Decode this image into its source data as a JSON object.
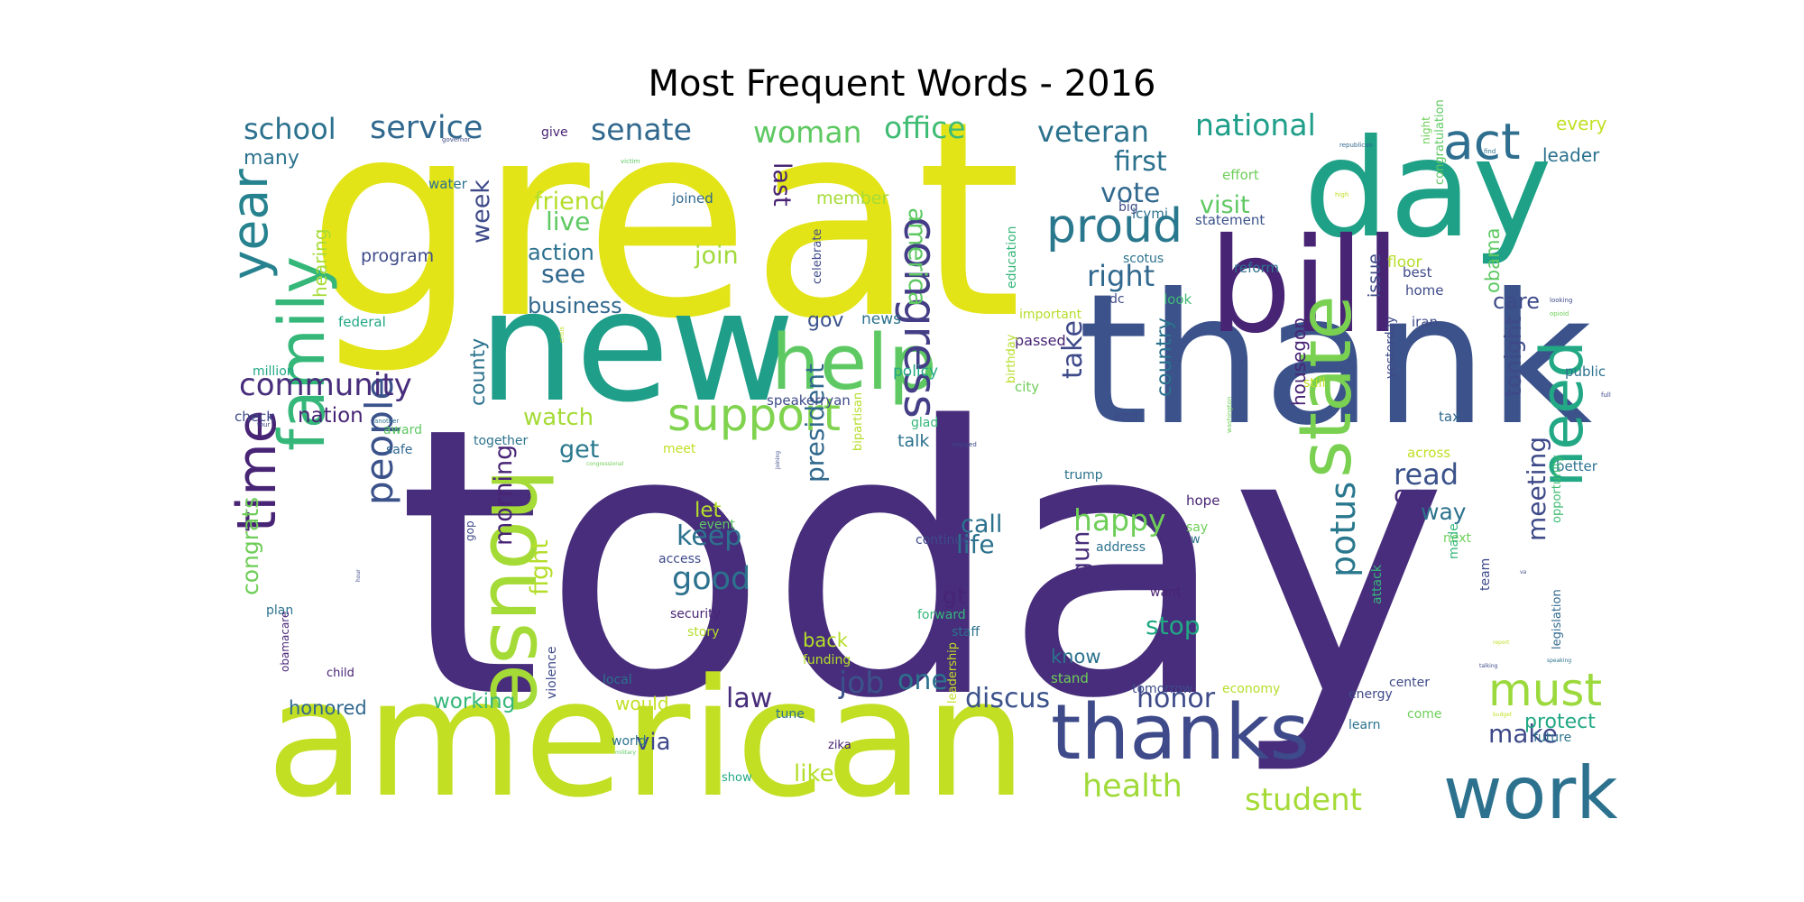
{
  "chart_data": {
    "type": "wordcloud",
    "title": "Most Frequent Words - 2016",
    "words": [
      {
        "text": "today",
        "weight": 100,
        "color": "#472d7b"
      },
      {
        "text": "great",
        "weight": 76,
        "color": "#e3e418"
      },
      {
        "text": "american",
        "weight": 58,
        "color": "#c2df23"
      },
      {
        "text": "thank",
        "weight": 57,
        "color": "#3b528b"
      },
      {
        "text": "new",
        "weight": 53,
        "color": "#1f9e89"
      },
      {
        "text": "day",
        "weight": 48,
        "color": "#1fa187"
      },
      {
        "text": "bill",
        "weight": 45,
        "color": "#482475"
      },
      {
        "text": "house",
        "weight": 30,
        "color": "#a5db36"
      },
      {
        "text": "thanks",
        "weight": 28,
        "color": "#3e4a89"
      },
      {
        "text": "work",
        "weight": 25,
        "color": "#2c728e"
      },
      {
        "text": "state",
        "weight": 25,
        "color": "#7ad151"
      },
      {
        "text": "help",
        "weight": 24,
        "color": "#5ec962"
      },
      {
        "text": "family",
        "weight": 23,
        "color": "#35b779"
      },
      {
        "text": "need",
        "weight": 21,
        "color": "#22a884"
      },
      {
        "text": "time",
        "weight": 20,
        "color": "#482475"
      },
      {
        "text": "year",
        "weight": 18,
        "color": "#26828e"
      },
      {
        "text": "support",
        "weight": 15,
        "color": "#7fd34e"
      },
      {
        "text": "congress",
        "weight": 15,
        "color": "#433e85"
      },
      {
        "text": "proud",
        "weight": 14,
        "color": "#2a788e"
      },
      {
        "text": "act",
        "weight": 14,
        "color": "#2e6e8e"
      },
      {
        "text": "people",
        "weight": 13,
        "color": "#3b528b"
      },
      {
        "text": "must",
        "weight": 13,
        "color": "#9bd93c"
      },
      {
        "text": "potus",
        "weight": 11,
        "color": "#2a788e"
      },
      {
        "text": "health",
        "weight": 11,
        "color": "#a0da39"
      },
      {
        "text": "student",
        "weight": 10,
        "color": "#a5db36"
      },
      {
        "text": "woman",
        "weight": 10,
        "color": "#5ec962"
      },
      {
        "text": "office",
        "weight": 10,
        "color": "#3fbc73"
      },
      {
        "text": "veteran",
        "weight": 10,
        "color": "#2c728e"
      },
      {
        "text": "senate",
        "weight": 10,
        "color": "#31688e"
      },
      {
        "text": "service",
        "weight": 10,
        "color": "#31688e"
      },
      {
        "text": "school",
        "weight": 10,
        "color": "#2c728e"
      },
      {
        "text": "national",
        "weight": 10,
        "color": "#1f9e89"
      },
      {
        "text": "community",
        "weight": 10,
        "color": "#472d7b"
      },
      {
        "text": "discus",
        "weight": 9,
        "color": "#3b528b"
      },
      {
        "text": "honor",
        "weight": 9,
        "color": "#3e4a89"
      },
      {
        "text": "happy",
        "weight": 9,
        "color": "#6ece58"
      },
      {
        "text": "president",
        "weight": 9,
        "color": "#31688e"
      },
      {
        "text": "right",
        "weight": 9,
        "color": "#31688e"
      },
      {
        "text": "read",
        "weight": 9,
        "color": "#3b528b"
      },
      {
        "text": "first",
        "weight": 9,
        "color": "#2c728e"
      },
      {
        "text": "vote",
        "weight": 9,
        "color": "#31688e"
      },
      {
        "text": "law",
        "weight": 9,
        "color": "#472d7b"
      },
      {
        "text": "make",
        "weight": 8,
        "color": "#3e4a89"
      },
      {
        "text": "job",
        "weight": 8,
        "color": "#3b528b"
      },
      {
        "text": "one",
        "weight": 8,
        "color": "#2c728e"
      },
      {
        "text": "good",
        "weight": 8,
        "color": "#2c728e"
      },
      {
        "text": "keep",
        "weight": 8,
        "color": "#2c728e"
      },
      {
        "text": "take",
        "weight": 8,
        "color": "#3e4a89"
      },
      {
        "text": "meeting",
        "weight": 8,
        "color": "#3e4a89"
      },
      {
        "text": "morning",
        "weight": 8,
        "color": "#482475"
      },
      {
        "text": "congrats",
        "weight": 8,
        "color": "#6ece58"
      },
      {
        "text": "america",
        "weight": 8,
        "color": "#5ec962"
      },
      {
        "text": "watch",
        "weight": 8,
        "color": "#a5db36"
      },
      {
        "text": "get",
        "weight": 8,
        "color": "#2a788e"
      },
      {
        "text": "join",
        "weight": 8,
        "color": "#a0da39"
      },
      {
        "text": "live",
        "weight": 8,
        "color": "#5ec962"
      },
      {
        "text": "see",
        "weight": 8,
        "color": "#31688e"
      },
      {
        "text": "visit",
        "weight": 7,
        "color": "#5ec962"
      },
      {
        "text": "week",
        "weight": 7,
        "color": "#3e4a89"
      },
      {
        "text": "friend",
        "weight": 7,
        "color": "#b5de2b"
      },
      {
        "text": "action",
        "weight": 7,
        "color": "#2c728e"
      },
      {
        "text": "business",
        "weight": 7,
        "color": "#31688e"
      },
      {
        "text": "last",
        "weight": 7,
        "color": "#482475"
      },
      {
        "text": "fight",
        "weight": 7,
        "color": "#b5de2b"
      },
      {
        "text": "life",
        "weight": 7,
        "color": "#2c728e"
      },
      {
        "text": "call",
        "weight": 7,
        "color": "#2c728e"
      },
      {
        "text": "stop",
        "weight": 7,
        "color": "#22a884"
      },
      {
        "text": "gun",
        "weight": 7,
        "color": "#472d7b"
      },
      {
        "text": "tonight",
        "weight": 7,
        "color": "#3e4a89"
      },
      {
        "text": "go",
        "weight": 7,
        "color": "#472d7b"
      },
      {
        "text": "way",
        "weight": 6,
        "color": "#2c728e"
      },
      {
        "text": "country",
        "weight": 6,
        "color": "#2c728e"
      },
      {
        "text": "county",
        "weight": 6,
        "color": "#2c728e"
      },
      {
        "text": "nation",
        "weight": 6,
        "color": "#482475"
      },
      {
        "text": "working",
        "weight": 6,
        "color": "#35b779"
      },
      {
        "text": "via",
        "weight": 6,
        "color": "#3e4a89"
      },
      {
        "text": "like",
        "weight": 6,
        "color": "#b5de2b"
      },
      {
        "text": "obama",
        "weight": 6,
        "color": "#5ec962"
      },
      {
        "text": "care",
        "weight": 6,
        "color": "#3e4a89"
      },
      {
        "text": "gt",
        "weight": 6,
        "color": "#482475"
      },
      {
        "text": "hearing",
        "weight": 6,
        "color": "#a5db36"
      },
      {
        "text": "many",
        "weight": 6,
        "color": "#2c728e"
      },
      {
        "text": "honored",
        "weight": 5,
        "color": "#31688e"
      },
      {
        "text": "protect",
        "weight": 5,
        "color": "#22a884"
      },
      {
        "text": "let",
        "weight": 5,
        "color": "#b5de2b"
      },
      {
        "text": "gov",
        "weight": 5,
        "color": "#3b528b"
      },
      {
        "text": "issue",
        "weight": 5,
        "color": "#3e4a89"
      },
      {
        "text": "housegop",
        "weight": 5,
        "color": "#482475"
      },
      {
        "text": "every",
        "weight": 5,
        "color": "#c2df23"
      },
      {
        "text": "leader",
        "weight": 5,
        "color": "#2c728e"
      },
      {
        "text": "know",
        "weight": 5,
        "color": "#2c728e"
      },
      {
        "text": "back",
        "weight": 5,
        "color": "#b5de2b"
      },
      {
        "text": "would",
        "weight": 5,
        "color": "#c2df23"
      },
      {
        "text": "program",
        "weight": 4,
        "color": "#3e4a89"
      },
      {
        "text": "talk",
        "weight": 4,
        "color": "#2c728e"
      },
      {
        "text": "member",
        "weight": 4,
        "color": "#a5db36"
      },
      {
        "text": "news",
        "weight": 4,
        "color": "#2c728e"
      },
      {
        "text": "policy",
        "weight": 4,
        "color": "#22a884"
      },
      {
        "text": "water",
        "weight": 3,
        "color": "#2c728e"
      },
      {
        "text": "joined",
        "weight": 3,
        "color": "#31688e"
      },
      {
        "text": "effort",
        "weight": 3,
        "color": "#6ece58"
      },
      {
        "text": "icymi",
        "weight": 3,
        "color": "#2c728e"
      },
      {
        "text": "big",
        "weight": 3,
        "color": "#3e4a89"
      },
      {
        "text": "statement",
        "weight": 3,
        "color": "#3b528b"
      },
      {
        "text": "reform",
        "weight": 3,
        "color": "#2c728e"
      },
      {
        "text": "scotus",
        "weight": 3,
        "color": "#2c728e"
      },
      {
        "text": "education",
        "weight": 3,
        "color": "#35b779"
      },
      {
        "text": "congratulation",
        "weight": 3,
        "color": "#5ec962"
      },
      {
        "text": "floor",
        "weight": 3,
        "color": "#b5de2b"
      },
      {
        "text": "best",
        "weight": 3,
        "color": "#3e4a89"
      },
      {
        "text": "home",
        "weight": 3,
        "color": "#3e4a89"
      },
      {
        "text": "iran",
        "weight": 3,
        "color": "#3e4a89"
      },
      {
        "text": "public",
        "weight": 3,
        "color": "#2c728e"
      },
      {
        "text": "federal",
        "weight": 3,
        "color": "#22a884"
      },
      {
        "text": "million",
        "weight": 3,
        "color": "#22a884"
      },
      {
        "text": "check",
        "weight": 3,
        "color": "#3e4a89"
      },
      {
        "text": "award",
        "weight": 3,
        "color": "#5ec962"
      },
      {
        "text": "safe",
        "weight": 3,
        "color": "#31688e"
      },
      {
        "text": "together",
        "weight": 3,
        "color": "#2c728e"
      },
      {
        "text": "meet",
        "weight": 3,
        "color": "#c2df23"
      },
      {
        "text": "speakerryan",
        "weight": 3,
        "color": "#3e4a89"
      },
      {
        "text": "glad",
        "weight": 3,
        "color": "#35b779"
      },
      {
        "text": "passed",
        "weight": 3,
        "color": "#482475"
      },
      {
        "text": "city",
        "weight": 3,
        "color": "#6ece58"
      },
      {
        "text": "important",
        "weight": 3,
        "color": "#b5de2b"
      },
      {
        "text": "dc",
        "weight": 3,
        "color": "#3e4a89"
      },
      {
        "text": "look",
        "weight": 3,
        "color": "#3fbc73"
      },
      {
        "text": "still",
        "weight": 3,
        "color": "#c2df23"
      },
      {
        "text": "end",
        "weight": 3,
        "color": "#3e4a89"
      },
      {
        "text": "yesterday",
        "weight": 3,
        "color": "#3e4a89"
      },
      {
        "text": "tax",
        "weight": 3,
        "color": "#31688e"
      },
      {
        "text": "across",
        "weight": 3,
        "color": "#c2df23"
      },
      {
        "text": "better",
        "weight": 3,
        "color": "#2c728e"
      },
      {
        "text": "opportunity",
        "weight": 3,
        "color": "#3fbc73"
      },
      {
        "text": "legislation",
        "weight": 3,
        "color": "#31688e"
      },
      {
        "text": "trump",
        "weight": 3,
        "color": "#2c728e"
      },
      {
        "text": "hope",
        "weight": 3,
        "color": "#482475"
      },
      {
        "text": "say",
        "weight": 3,
        "color": "#6ece58"
      },
      {
        "text": "w",
        "weight": 2,
        "color": "#2c728e"
      },
      {
        "text": "next",
        "weight": 3,
        "color": "#6ece58"
      },
      {
        "text": "address",
        "weight": 3,
        "color": "#2c728e"
      },
      {
        "text": "want",
        "weight": 3,
        "color": "#482475"
      },
      {
        "text": "made",
        "weight": 3,
        "color": "#35b779"
      },
      {
        "text": "team",
        "weight": 3,
        "color": "#3e4a89"
      },
      {
        "text": "attack",
        "weight": 3,
        "color": "#35b779"
      },
      {
        "text": "center",
        "weight": 3,
        "color": "#3e4a89"
      },
      {
        "text": "energy",
        "weight": 3,
        "color": "#3e4a89"
      },
      {
        "text": "come",
        "weight": 3,
        "color": "#6ece58"
      },
      {
        "text": "learn",
        "weight": 3,
        "color": "#2c728e"
      },
      {
        "text": "future",
        "weight": 3,
        "color": "#2c728e"
      },
      {
        "text": "stand",
        "weight": 3,
        "color": "#6ece58"
      },
      {
        "text": "tomorrow",
        "weight": 3,
        "color": "#3e4a89"
      },
      {
        "text": "economy",
        "weight": 3,
        "color": "#b5de2b"
      },
      {
        "text": "continue",
        "weight": 3,
        "color": "#3e4a89"
      },
      {
        "text": "event",
        "weight": 3,
        "color": "#5ec962"
      },
      {
        "text": "access",
        "weight": 3,
        "color": "#3e4a89"
      },
      {
        "text": "security",
        "weight": 3,
        "color": "#482475"
      },
      {
        "text": "story",
        "weight": 3,
        "color": "#b5de2b"
      },
      {
        "text": "staff",
        "weight": 3,
        "color": "#2c728e"
      },
      {
        "text": "forward",
        "weight": 3,
        "color": "#35b779"
      },
      {
        "text": "funding",
        "weight": 3,
        "color": "#b5de2b"
      },
      {
        "text": "tune",
        "weight": 3,
        "color": "#2c728e"
      },
      {
        "text": "local",
        "weight": 3,
        "color": "#2c728e"
      },
      {
        "text": "world",
        "weight": 3,
        "color": "#2c728e"
      },
      {
        "text": "zika",
        "weight": 3,
        "color": "#482475"
      },
      {
        "text": "show",
        "weight": 3,
        "color": "#22a884"
      },
      {
        "text": "child",
        "weight": 3,
        "color": "#482475"
      },
      {
        "text": "plan",
        "weight": 3,
        "color": "#2c728e"
      },
      {
        "text": "obamacare",
        "weight": 3,
        "color": "#482475"
      },
      {
        "text": "gop",
        "weight": 3,
        "color": "#3e4a89"
      },
      {
        "text": "violence",
        "weight": 3,
        "color": "#3e4a89"
      },
      {
        "text": "leadership",
        "weight": 3,
        "color": "#c2df23"
      },
      {
        "text": "bipartisan",
        "weight": 3,
        "color": "#b5de2b"
      },
      {
        "text": "celebrate",
        "weight": 3,
        "color": "#3e4a89"
      },
      {
        "text": "birthday",
        "weight": 3,
        "color": "#b5de2b"
      },
      {
        "text": "give",
        "weight": 2,
        "color": "#482475"
      },
      {
        "text": "night",
        "weight": 2,
        "color": "#6ece58"
      },
      {
        "text": "governor",
        "weight": 1,
        "color": "#3e4a89"
      },
      {
        "text": "victim",
        "weight": 1,
        "color": "#5ec962"
      },
      {
        "text": "republican",
        "weight": 1,
        "color": "#31688e"
      },
      {
        "text": "high",
        "weight": 1,
        "color": "#c2df23"
      },
      {
        "text": "find",
        "weight": 1,
        "color": "#2c728e"
      },
      {
        "text": "looking",
        "weight": 1,
        "color": "#3e4a89"
      },
      {
        "text": "opioid",
        "weight": 1,
        "color": "#6ece58"
      },
      {
        "text": "full",
        "weight": 1,
        "color": "#3e4a89"
      },
      {
        "text": "another",
        "weight": 1,
        "color": "#2c728e"
      },
      {
        "text": "tour",
        "weight": 1,
        "color": "#3e4a89"
      },
      {
        "text": "crisis",
        "weight": 1,
        "color": "#c2df23"
      },
      {
        "text": "washington",
        "weight": 1,
        "color": "#6ece58"
      },
      {
        "text": "enjoyed",
        "weight": 1,
        "color": "#3e4a89"
      },
      {
        "text": "joining",
        "weight": 1,
        "color": "#3e4a89"
      },
      {
        "text": "congressional",
        "weight": 1,
        "color": "#6ece58"
      },
      {
        "text": "military",
        "weight": 1,
        "color": "#5ec962"
      },
      {
        "text": "speaking",
        "weight": 1,
        "color": "#2c728e"
      },
      {
        "text": "budget",
        "weight": 1,
        "color": "#c2df23"
      },
      {
        "text": "report",
        "weight": 1,
        "color": "#c2df23"
      },
      {
        "text": "talking",
        "weight": 1,
        "color": "#3e4a89"
      },
      {
        "text": "hour",
        "weight": 1,
        "color": "#3e4a89"
      },
      {
        "text": "va",
        "weight": 1,
        "color": "#3e4a89"
      }
    ]
  }
}
